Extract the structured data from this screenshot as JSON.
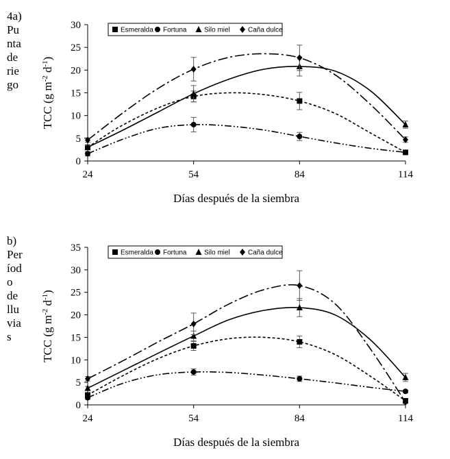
{
  "figure": {
    "panels": [
      {
        "id": "a",
        "label_lines": [
          "4a)",
          "Pu",
          "nta",
          "de",
          "rie",
          "go"
        ]
      },
      {
        "id": "b",
        "label_lines": [
          "b)",
          "Per",
          "íod",
          "o",
          "de",
          "llu",
          "via",
          "s"
        ]
      }
    ]
  },
  "chart_data": [
    {
      "type": "line",
      "panel": "a",
      "xlabel": "Días después de la siembra",
      "ylabel": "TCC (g m-2 d-1)",
      "ylabel_parts": {
        "base": "TCC (g m",
        "sup1": "-2",
        "mid": " d",
        "sup2": "-1",
        "end": ")"
      },
      "x_ticks": [
        24,
        54,
        84,
        114
      ],
      "y_ticks": [
        0,
        5,
        10,
        15,
        20,
        25,
        30
      ],
      "xlim": [
        24,
        114
      ],
      "ylim": [
        0,
        30
      ],
      "legend_position": "top-left",
      "x": [
        24,
        54,
        84,
        114
      ],
      "series": [
        {
          "name": "Esmeralda",
          "marker": "square",
          "dash": "4,3",
          "values": [
            3.0,
            14.2,
            13.2,
            1.9
          ],
          "errors": [
            0.4,
            1.2,
            1.9,
            0.3
          ],
          "curve": [
            [
              24,
              3.0
            ],
            [
              33,
              7.5
            ],
            [
              44,
              11.7
            ],
            [
              54,
              14.2
            ],
            [
              64,
              15.0
            ],
            [
              74,
              14.6
            ],
            [
              84,
              13.2
            ],
            [
              94,
              10.5
            ],
            [
              104,
              6.2
            ],
            [
              114,
              1.9
            ]
          ]
        },
        {
          "name": "Fortuna",
          "marker": "circle",
          "dash": "10,3,2,3,2,3",
          "values": [
            1.6,
            8.0,
            5.4,
            1.9
          ],
          "errors": [
            0.5,
            1.6,
            0.9,
            0.3
          ],
          "curve": [
            [
              24,
              1.6
            ],
            [
              34,
              4.8
            ],
            [
              44,
              7.2
            ],
            [
              54,
              8.0
            ],
            [
              64,
              7.7
            ],
            [
              74,
              6.8
            ],
            [
              84,
              5.4
            ],
            [
              94,
              4.0
            ],
            [
              104,
              2.8
            ],
            [
              114,
              1.9
            ]
          ]
        },
        {
          "name": "Silo miel",
          "marker": "triangle",
          "dash": "",
          "values": [
            3.0,
            14.8,
            20.8,
            8.0
          ],
          "errors": [
            0.4,
            1.8,
            2.1,
            0.8
          ],
          "curve": [
            [
              24,
              3.0
            ],
            [
              34,
              6.8
            ],
            [
              44,
              10.8
            ],
            [
              54,
              14.8
            ],
            [
              64,
              18.0
            ],
            [
              74,
              20.2
            ],
            [
              84,
              20.8
            ],
            [
              94,
              19.8
            ],
            [
              104,
              15.5
            ],
            [
              114,
              8.0
            ]
          ]
        },
        {
          "name": "Caña dulce",
          "marker": "diamond",
          "dash": "14,4,3,4",
          "values": [
            4.6,
            20.2,
            22.7,
            4.7
          ],
          "errors": [
            0.5,
            2.6,
            2.8,
            0.6
          ],
          "curve": [
            [
              24,
              4.6
            ],
            [
              34,
              10.6
            ],
            [
              44,
              16.0
            ],
            [
              54,
              20.2
            ],
            [
              64,
              22.8
            ],
            [
              74,
              23.6
            ],
            [
              84,
              22.7
            ],
            [
              94,
              19.0
            ],
            [
              104,
              12.5
            ],
            [
              114,
              4.7
            ]
          ]
        }
      ]
    },
    {
      "type": "line",
      "panel": "b",
      "xlabel": "Días después de la siembra",
      "ylabel": "TCC (g m-2 d-1)",
      "ylabel_parts": {
        "base": "TCC (g m",
        "sup1": "-2",
        "mid": " d",
        "sup2": "-1",
        "end": ")"
      },
      "x_ticks": [
        24,
        54,
        84,
        114
      ],
      "y_ticks": [
        0,
        5,
        10,
        15,
        20,
        25,
        30,
        35
      ],
      "xlim": [
        24,
        114
      ],
      "ylim": [
        0,
        35
      ],
      "legend_position": "top-left",
      "x": [
        24,
        54,
        84,
        114
      ],
      "series": [
        {
          "name": "Esmeralda",
          "marker": "square",
          "dash": "4,3",
          "values": [
            2.2,
            13.1,
            14.0,
            0.9
          ],
          "errors": [
            0.4,
            1.0,
            1.3,
            0.3
          ],
          "curve": [
            [
              24,
              2.2
            ],
            [
              34,
              6.5
            ],
            [
              44,
              10.3
            ],
            [
              54,
              13.1
            ],
            [
              64,
              14.7
            ],
            [
              74,
              15.0
            ],
            [
              84,
              14.0
            ],
            [
              94,
              11.2
            ],
            [
              104,
              6.4
            ],
            [
              114,
              0.9
            ]
          ]
        },
        {
          "name": "Fortuna",
          "marker": "circle",
          "dash": "10,3,2,3,2,3",
          "values": [
            1.6,
            7.3,
            5.8,
            3.0
          ],
          "errors": [
            0.4,
            0.7,
            0.6,
            0.3
          ],
          "curve": [
            [
              24,
              1.6
            ],
            [
              34,
              4.8
            ],
            [
              44,
              6.7
            ],
            [
              54,
              7.3
            ],
            [
              64,
              7.2
            ],
            [
              74,
              6.6
            ],
            [
              84,
              5.8
            ],
            [
              94,
              4.9
            ],
            [
              104,
              3.9
            ],
            [
              114,
              3.0
            ]
          ]
        },
        {
          "name": "Silo miel",
          "marker": "triangle",
          "dash": "",
          "values": [
            3.7,
            15.3,
            21.6,
            6.1
          ],
          "errors": [
            0.4,
            1.1,
            2.0,
            0.9
          ],
          "curve": [
            [
              24,
              3.7
            ],
            [
              34,
              7.6
            ],
            [
              44,
              11.5
            ],
            [
              54,
              15.3
            ],
            [
              64,
              18.9
            ],
            [
              74,
              21.0
            ],
            [
              84,
              21.6
            ],
            [
              94,
              20.0
            ],
            [
              104,
              14.5
            ],
            [
              114,
              6.1
            ]
          ]
        },
        {
          "name": "Caña dulce",
          "marker": "diamond",
          "dash": "14,4,3,4",
          "values": [
            5.8,
            18.0,
            26.5,
            0.6
          ],
          "errors": [
            0.5,
            2.4,
            3.3,
            0.3
          ],
          "curve": [
            [
              24,
              5.8
            ],
            [
              34,
              9.8
            ],
            [
              44,
              14.0
            ],
            [
              54,
              18.0
            ],
            [
              64,
              22.4
            ],
            [
              74,
              25.6
            ],
            [
              84,
              26.5
            ],
            [
              94,
              22.5
            ],
            [
              104,
              12.5
            ],
            [
              114,
              0.6
            ]
          ]
        }
      ]
    }
  ]
}
